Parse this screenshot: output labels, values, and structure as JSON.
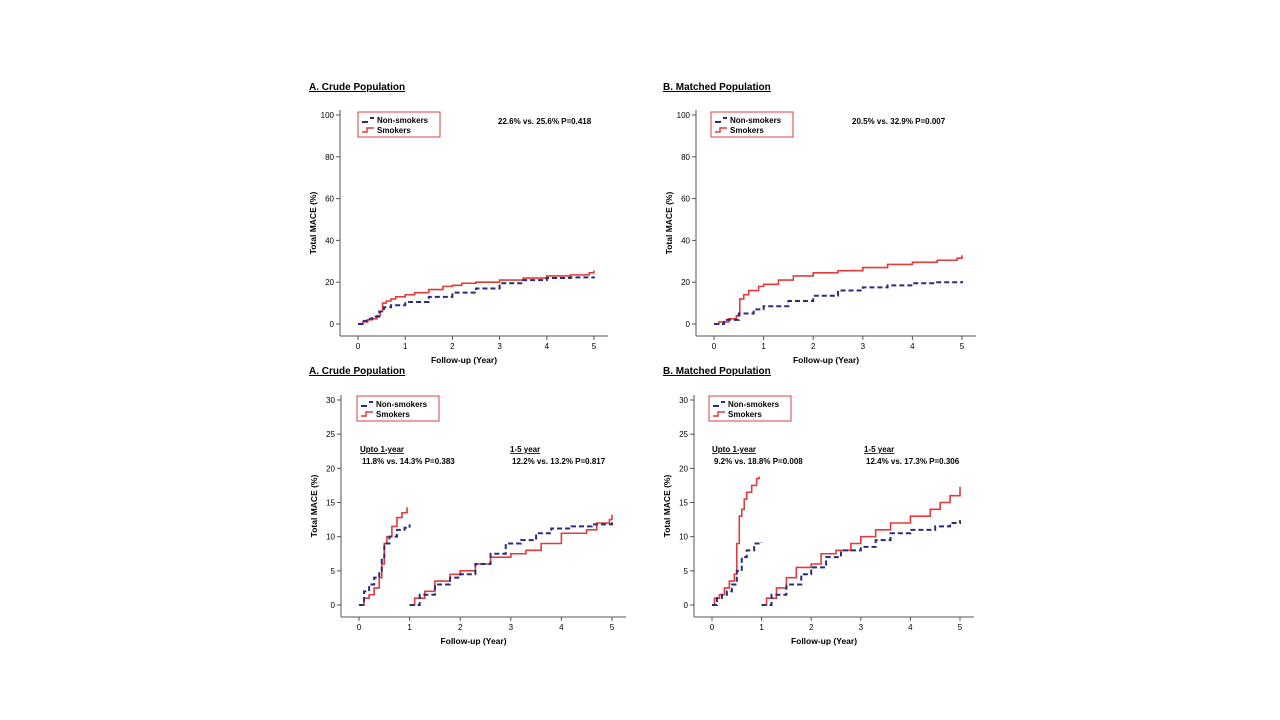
{
  "colors": {
    "smokers": "#e03c3c",
    "non_smokers": "#2b2b7a",
    "legend_border": "#d94040",
    "axis": "#555555"
  },
  "chart_data": [
    {
      "id": "p1",
      "type": "line",
      "title": "A. Crude Population",
      "xlabel": "Follow-up (Year)",
      "ylabel": "Total MACE (%)",
      "xlim": [
        0,
        5
      ],
      "ylim": [
        0,
        100
      ],
      "xticks": [
        0,
        1,
        2,
        3,
        4,
        5
      ],
      "yticks": [
        0,
        20,
        40,
        60,
        80,
        100
      ],
      "legend": [
        "Non-smokers",
        "Smokers"
      ],
      "legend_position": "top-left",
      "annotations": [
        "22.6%  vs. 25.6%  P=0.418"
      ],
      "series": [
        {
          "name": "Smokers",
          "style": "solid",
          "points": [
            [
              0,
              0
            ],
            [
              0.1,
              1
            ],
            [
              0.2,
              2
            ],
            [
              0.3,
              2.5
            ],
            [
              0.4,
              4
            ],
            [
              0.47,
              6
            ],
            [
              0.52,
              10
            ],
            [
              0.6,
              11
            ],
            [
              0.7,
              12
            ],
            [
              0.8,
              13
            ],
            [
              1.0,
              14
            ],
            [
              1.2,
              15
            ],
            [
              1.5,
              16.5
            ],
            [
              1.8,
              18
            ],
            [
              2.0,
              18.5
            ],
            [
              2.2,
              19.5
            ],
            [
              2.5,
              20
            ],
            [
              3.0,
              21
            ],
            [
              3.5,
              22
            ],
            [
              4.0,
              23
            ],
            [
              4.5,
              23.5
            ],
            [
              4.9,
              24.5
            ],
            [
              5.0,
              25.6
            ]
          ]
        },
        {
          "name": "Non-smokers",
          "style": "dashed",
          "points": [
            [
              0,
              0
            ],
            [
              0.1,
              1.5
            ],
            [
              0.2,
              2.5
            ],
            [
              0.3,
              3.5
            ],
            [
              0.45,
              6
            ],
            [
              0.55,
              8
            ],
            [
              0.7,
              9
            ],
            [
              1.0,
              10.5
            ],
            [
              1.5,
              13
            ],
            [
              2.0,
              15
            ],
            [
              2.5,
              17
            ],
            [
              3.0,
              19.5
            ],
            [
              3.5,
              21
            ],
            [
              4.0,
              22
            ],
            [
              4.5,
              22.3
            ],
            [
              5.0,
              22.6
            ]
          ]
        }
      ]
    },
    {
      "id": "p2",
      "type": "line",
      "title": "B. Matched Population",
      "xlabel": "Follow-up (Year)",
      "ylabel": "Total MACE (%)",
      "xlim": [
        0,
        5
      ],
      "ylim": [
        0,
        100
      ],
      "xticks": [
        0,
        1,
        2,
        3,
        4,
        5
      ],
      "yticks": [
        0,
        20,
        40,
        60,
        80,
        100
      ],
      "legend": [
        "Non-smokers",
        "Smokers"
      ],
      "legend_position": "top-left",
      "annotations": [
        "20.5%  vs. 32.9%   P=0.007"
      ],
      "series": [
        {
          "name": "Smokers",
          "style": "solid",
          "points": [
            [
              0,
              0
            ],
            [
              0.1,
              1
            ],
            [
              0.3,
              2.5
            ],
            [
              0.45,
              4
            ],
            [
              0.52,
              12
            ],
            [
              0.6,
              14
            ],
            [
              0.7,
              16
            ],
            [
              0.9,
              18
            ],
            [
              1.0,
              19
            ],
            [
              1.3,
              21
            ],
            [
              1.6,
              23
            ],
            [
              2.0,
              24.5
            ],
            [
              2.5,
              25.5
            ],
            [
              3.0,
              27
            ],
            [
              3.5,
              28.5
            ],
            [
              4.0,
              29.5
            ],
            [
              4.5,
              30.5
            ],
            [
              4.9,
              31.5
            ],
            [
              5.0,
              32.9
            ]
          ]
        },
        {
          "name": "Non-smokers",
          "style": "dashed",
          "points": [
            [
              0,
              0
            ],
            [
              0.2,
              2
            ],
            [
              0.5,
              5
            ],
            [
              0.8,
              7
            ],
            [
              1.0,
              8.5
            ],
            [
              1.5,
              11
            ],
            [
              2.0,
              13.5
            ],
            [
              2.5,
              16
            ],
            [
              3.0,
              17.5
            ],
            [
              3.5,
              18.5
            ],
            [
              4.0,
              19.5
            ],
            [
              4.5,
              20
            ],
            [
              5.0,
              20.5
            ]
          ]
        }
      ]
    },
    {
      "id": "p3",
      "type": "line",
      "title": "A. Crude Population",
      "xlabel": "Follow-up (Year)",
      "ylabel": "Total MACE (%)",
      "xlim": [
        0,
        5
      ],
      "ylim": [
        0,
        30
      ],
      "xticks": [
        0,
        1,
        2,
        3,
        4,
        5
      ],
      "yticks": [
        0,
        5,
        10,
        15,
        20,
        25,
        30
      ],
      "legend": [
        "Non-smokers",
        "Smokers"
      ],
      "legend_position": "top-left",
      "annotations": [
        {
          "heading": "Upto 1-year",
          "text": "11.8% vs. 14.3%  P=0.383"
        },
        {
          "heading": "1-5 year",
          "text": "12.2% vs. 13.2%  P=0.817"
        }
      ],
      "series": [
        {
          "name": "Smokers",
          "segment": "0-1",
          "style": "solid",
          "points": [
            [
              0,
              0
            ],
            [
              0.1,
              1
            ],
            [
              0.2,
              1.5
            ],
            [
              0.3,
              2.5
            ],
            [
              0.4,
              4
            ],
            [
              0.45,
              6
            ],
            [
              0.5,
              9
            ],
            [
              0.55,
              10
            ],
            [
              0.65,
              11.5
            ],
            [
              0.75,
              12.8
            ],
            [
              0.85,
              13.5
            ],
            [
              0.95,
              14.3
            ]
          ]
        },
        {
          "name": "Non-smokers",
          "segment": "0-1",
          "style": "dashed",
          "points": [
            [
              0,
              0
            ],
            [
              0.1,
              2
            ],
            [
              0.2,
              3
            ],
            [
              0.3,
              4
            ],
            [
              0.4,
              5
            ],
            [
              0.45,
              7
            ],
            [
              0.5,
              9
            ],
            [
              0.6,
              10
            ],
            [
              0.75,
              11
            ],
            [
              0.9,
              11.3
            ],
            [
              1.0,
              11.8
            ]
          ]
        },
        {
          "name": "Smokers",
          "segment": "1-5",
          "style": "solid",
          "points": [
            [
              1.0,
              0
            ],
            [
              1.1,
              1
            ],
            [
              1.3,
              2
            ],
            [
              1.5,
              3.5
            ],
            [
              1.8,
              4.5
            ],
            [
              2.0,
              5
            ],
            [
              2.3,
              6
            ],
            [
              2.6,
              7
            ],
            [
              3.0,
              7.5
            ],
            [
              3.3,
              8
            ],
            [
              3.6,
              9
            ],
            [
              4.0,
              10.5
            ],
            [
              4.5,
              11
            ],
            [
              4.7,
              12
            ],
            [
              4.95,
              12.5
            ],
            [
              5.0,
              13.2
            ]
          ]
        },
        {
          "name": "Non-smokers",
          "segment": "1-5",
          "style": "dashed",
          "points": [
            [
              1.0,
              0
            ],
            [
              1.2,
              1.5
            ],
            [
              1.5,
              3
            ],
            [
              1.8,
              4
            ],
            [
              2.0,
              4.5
            ],
            [
              2.3,
              6
            ],
            [
              2.6,
              7.5
            ],
            [
              2.9,
              9
            ],
            [
              3.2,
              9.5
            ],
            [
              3.5,
              10.5
            ],
            [
              3.8,
              11.2
            ],
            [
              4.2,
              11.5
            ],
            [
              4.6,
              11.8
            ],
            [
              5.0,
              12.2
            ]
          ]
        }
      ]
    },
    {
      "id": "p4",
      "type": "line",
      "title": "B. Matched Population",
      "xlabel": "Follow-up (Year)",
      "ylabel": "Total MACE (%)",
      "xlim": [
        0,
        5
      ],
      "ylim": [
        0,
        30
      ],
      "xticks": [
        0,
        1,
        2,
        3,
        4,
        5
      ],
      "yticks": [
        0,
        5,
        10,
        15,
        20,
        25,
        30
      ],
      "legend": [
        "Non-smokers",
        "Smokers"
      ],
      "legend_position": "top-left",
      "annotations": [
        {
          "heading": "Upto 1-year",
          "text": "9.2% vs. 18.8%  P=0.008"
        },
        {
          "heading": "1-5 year",
          "text": "12.4% vs. 17.3%  P=0.306"
        }
      ],
      "series": [
        {
          "name": "Smokers",
          "segment": "0-1",
          "style": "solid",
          "points": [
            [
              0,
              0
            ],
            [
              0.05,
              1
            ],
            [
              0.15,
              1.5
            ],
            [
              0.25,
              2.5
            ],
            [
              0.35,
              3.5
            ],
            [
              0.45,
              4.5
            ],
            [
              0.5,
              9
            ],
            [
              0.55,
              13
            ],
            [
              0.6,
              14
            ],
            [
              0.65,
              15.5
            ],
            [
              0.7,
              16.5
            ],
            [
              0.8,
              17.5
            ],
            [
              0.9,
              18.5
            ],
            [
              0.95,
              18.8
            ]
          ]
        },
        {
          "name": "Non-smokers",
          "segment": "0-1",
          "style": "dashed",
          "points": [
            [
              0,
              0
            ],
            [
              0.1,
              1
            ],
            [
              0.2,
              1.5
            ],
            [
              0.3,
              2
            ],
            [
              0.4,
              3
            ],
            [
              0.5,
              5
            ],
            [
              0.6,
              7
            ],
            [
              0.7,
              8
            ],
            [
              0.85,
              9
            ],
            [
              1.0,
              9.2
            ]
          ]
        },
        {
          "name": "Smokers",
          "segment": "1-5",
          "style": "solid",
          "points": [
            [
              1.0,
              0
            ],
            [
              1.1,
              1
            ],
            [
              1.3,
              2.5
            ],
            [
              1.5,
              4
            ],
            [
              1.7,
              5.5
            ],
            [
              2.0,
              6
            ],
            [
              2.2,
              7.5
            ],
            [
              2.5,
              8
            ],
            [
              2.8,
              9
            ],
            [
              3.0,
              10
            ],
            [
              3.3,
              11
            ],
            [
              3.6,
              12
            ],
            [
              4.0,
              13
            ],
            [
              4.4,
              14
            ],
            [
              4.6,
              15
            ],
            [
              4.8,
              16
            ],
            [
              5.0,
              17.3
            ]
          ]
        },
        {
          "name": "Non-smokers",
          "segment": "1-5",
          "style": "dashed",
          "points": [
            [
              1.0,
              0
            ],
            [
              1.2,
              1.5
            ],
            [
              1.5,
              3
            ],
            [
              1.8,
              4.5
            ],
            [
              2.0,
              5.5
            ],
            [
              2.3,
              7
            ],
            [
              2.6,
              8
            ],
            [
              3.0,
              8.5
            ],
            [
              3.3,
              9.5
            ],
            [
              3.6,
              10.5
            ],
            [
              4.0,
              11
            ],
            [
              4.5,
              11.5
            ],
            [
              4.8,
              12
            ],
            [
              5.0,
              12.4
            ]
          ]
        }
      ]
    }
  ]
}
